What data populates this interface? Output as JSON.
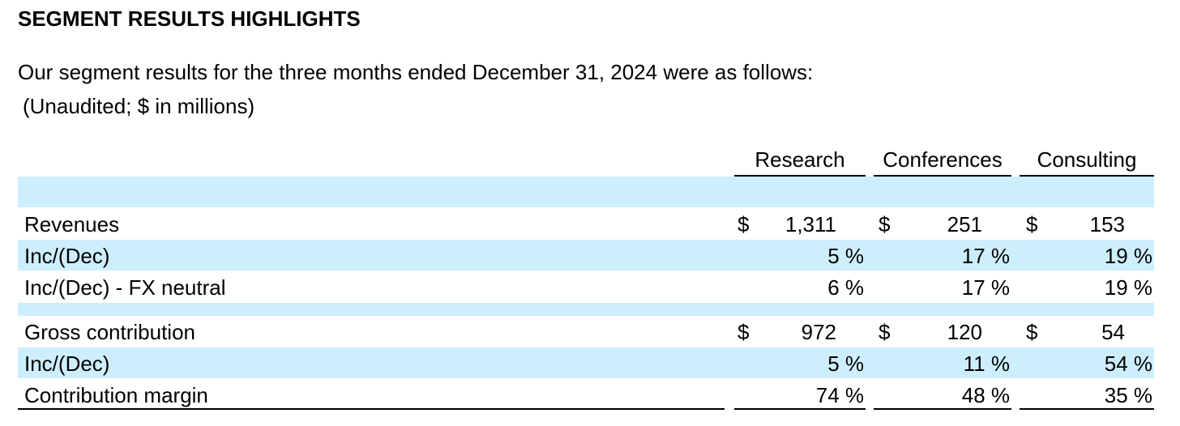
{
  "title": "SEGMENT RESULTS HIGHLIGHTS",
  "intro": "Our segment results for the three months ended December 31, 2024 were as follows:",
  "units": "(Unaudited; $ in millions)",
  "columns": [
    "Research",
    "Conferences",
    "Consulting"
  ],
  "currency_symbol": "$",
  "rows": {
    "revenues": {
      "label": "Revenues",
      "values": [
        "1,311",
        "251",
        "153"
      ]
    },
    "revenues_inc": {
      "label": "Inc/(Dec)",
      "values": [
        "5 %",
        "17 %",
        "19 %"
      ]
    },
    "revenues_fx": {
      "label": "Inc/(Dec) - FX neutral",
      "values": [
        "6 %",
        "17 %",
        "19 %"
      ]
    },
    "gross": {
      "label": "Gross contribution",
      "values": [
        "972",
        "120",
        "54"
      ]
    },
    "gross_inc": {
      "label": "Inc/(Dec)",
      "values": [
        "5 %",
        "11 %",
        "54 %"
      ]
    },
    "margin": {
      "label": "Contribution margin",
      "values": [
        "74 %",
        "48 %",
        "35 %"
      ]
    }
  },
  "colors": {
    "band": "#cdeefd",
    "text": "#000000"
  }
}
